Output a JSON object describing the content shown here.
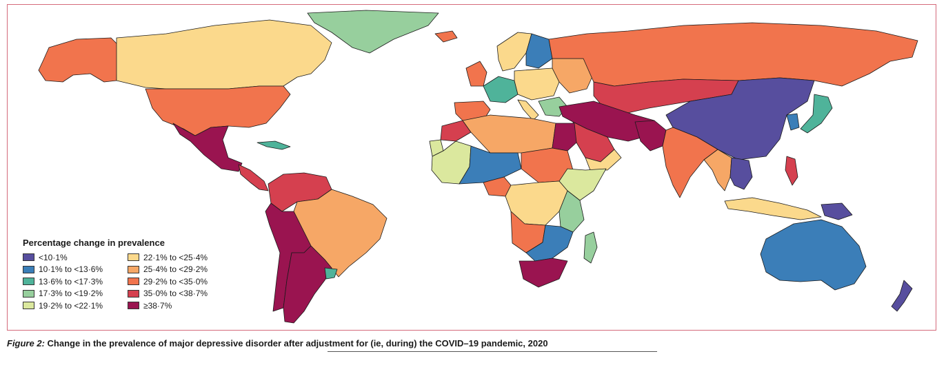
{
  "legend": {
    "title": "Percentage change in prevalence",
    "items": [
      {
        "label": "<10·1%",
        "color": "#574e9e"
      },
      {
        "label": "10·1% to <13·6%",
        "color": "#3b7eb8"
      },
      {
        "label": "13·6% to <17·3%",
        "color": "#4fb39a"
      },
      {
        "label": "17·3% to <19·2%",
        "color": "#97cf9d"
      },
      {
        "label": "19·2% to <22·1%",
        "color": "#dbe89e"
      },
      {
        "label": "22·1% to <25·4%",
        "color": "#fbd98c"
      },
      {
        "label": "25·4% to <29·2%",
        "color": "#f6a766"
      },
      {
        "label": "29·2% to <35·0%",
        "color": "#f1744d"
      },
      {
        "label": "35·0% to <38·7%",
        "color": "#d5404f"
      },
      {
        "label": "≥38·7%",
        "color": "#9a1450"
      }
    ]
  },
  "caption": {
    "label": "Figure 2:",
    "text": " Change in the prevalence of major depressive disorder after adjustment for (ie, during) the COVID–19 pandemic, 2020"
  },
  "regions": [
    {
      "name": "canada",
      "category": 5
    },
    {
      "name": "alaska",
      "category": 7
    },
    {
      "name": "greenland",
      "category": 3
    },
    {
      "name": "usa",
      "category": 7
    },
    {
      "name": "mexico",
      "category": 9
    },
    {
      "name": "central-america",
      "category": 8
    },
    {
      "name": "cuba",
      "category": 2
    },
    {
      "name": "colombia-venezuela",
      "category": 8
    },
    {
      "name": "peru-bolivia-chile",
      "category": 9
    },
    {
      "name": "brazil",
      "category": 6
    },
    {
      "name": "argentina",
      "category": 9
    },
    {
      "name": "uruguay",
      "category": 2
    },
    {
      "name": "iceland",
      "category": 7
    },
    {
      "name": "uk-ireland",
      "category": 7
    },
    {
      "name": "scandinavia",
      "category": 5
    },
    {
      "name": "finland-sweden",
      "category": 1
    },
    {
      "name": "western-europe",
      "category": 2
    },
    {
      "name": "central-europe",
      "category": 5
    },
    {
      "name": "iberia",
      "category": 7
    },
    {
      "name": "italy",
      "category": 5
    },
    {
      "name": "eastern-europe",
      "category": 6
    },
    {
      "name": "balkans",
      "category": 3
    },
    {
      "name": "russia",
      "category": 7
    },
    {
      "name": "kazakhstan-mongolia",
      "category": 8
    },
    {
      "name": "turkey-iran-afghanistan",
      "category": 9
    },
    {
      "name": "china",
      "category": 0
    },
    {
      "name": "india",
      "category": 7
    },
    {
      "name": "pakistan",
      "category": 9
    },
    {
      "name": "arabia",
      "category": 8
    },
    {
      "name": "oman-yemen",
      "category": 5
    },
    {
      "name": "japan",
      "category": 2
    },
    {
      "name": "korea",
      "category": 1
    },
    {
      "name": "southeast-asia",
      "category": 0
    },
    {
      "name": "myanmar-thailand",
      "category": 6
    },
    {
      "name": "indonesia",
      "category": 5
    },
    {
      "name": "philippines",
      "category": 8
    },
    {
      "name": "papua",
      "category": 0
    },
    {
      "name": "australia",
      "category": 1
    },
    {
      "name": "new-zealand",
      "category": 0
    },
    {
      "name": "morocco",
      "category": 8
    },
    {
      "name": "algeria-libya",
      "category": 6
    },
    {
      "name": "egypt",
      "category": 9
    },
    {
      "name": "west-africa",
      "category": 4
    },
    {
      "name": "sahel",
      "category": 1
    },
    {
      "name": "nigeria",
      "category": 7
    },
    {
      "name": "sudan-chad",
      "category": 7
    },
    {
      "name": "ethiopia-horn",
      "category": 4
    },
    {
      "name": "central-africa",
      "category": 5
    },
    {
      "name": "east-africa",
      "category": 3
    },
    {
      "name": "angola-zambia",
      "category": 7
    },
    {
      "name": "southern-africa",
      "category": 1
    },
    {
      "name": "south-africa",
      "category": 9
    },
    {
      "name": "madagascar",
      "category": 3
    },
    {
      "name": "western-sahara",
      "category": 4
    }
  ]
}
